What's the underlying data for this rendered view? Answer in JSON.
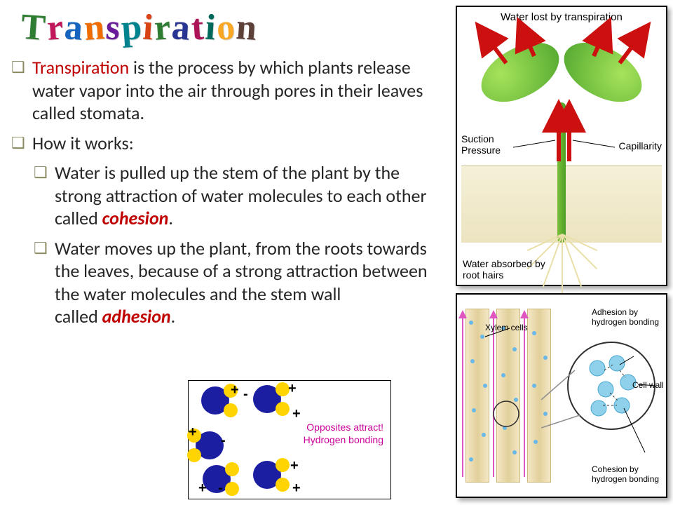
{
  "title": {
    "text": "Transpiration",
    "letter_colors": [
      "#2e7d32",
      "#c2185b",
      "#1565c0",
      "#ef6c00",
      "#6a1b9a",
      "#00838f",
      "#d84315",
      "#2e7d32",
      "#283593",
      "#ad1457",
      "#00695c",
      "#f9a825",
      "#5d4037"
    ]
  },
  "bullets": {
    "b1_pre": "Transpiration",
    "b1_rest": " is the process by which plants release water vapor into the air through pores in their leaves called stomata.",
    "b2": "How it works:",
    "b3_pre": "Water is pulled up the stem of the plant by the strong attraction of water molecules to each other called ",
    "b3_key": "cohesion",
    "b4_pre": "Water moves up the plant, from the roots towards the leaves, because of a strong attraction between the water molecules and the stem wall",
    "b4_break": "called ",
    "b4_key": "adhesion"
  },
  "plant_labels": {
    "top": "Water lost by transpiration",
    "suction": "Suction Pressure",
    "capillarity": "Capillarity",
    "roots": "Water absorbed by root hairs"
  },
  "xylem_labels": {
    "adhesion": "Adhesion by hydrogen bonding",
    "cellwall": "Cell wall",
    "cohesion": "Cohesion by hydrogen bonding",
    "xylem": "Xylem cells"
  },
  "hbond": {
    "caption1": "Opposites attract!",
    "caption2": "Hydrogen bonding",
    "plus": "+",
    "minus": "-"
  },
  "colors": {
    "highlight": "#c00000",
    "text": "#262626",
    "arrow": "#cc1010",
    "leaf_light": "#a6e35a",
    "leaf_dark": "#4fa62e",
    "oxygen": "#1b1ea0",
    "hydrogen": "#ffd400",
    "magnify_stroke": "#303030"
  }
}
